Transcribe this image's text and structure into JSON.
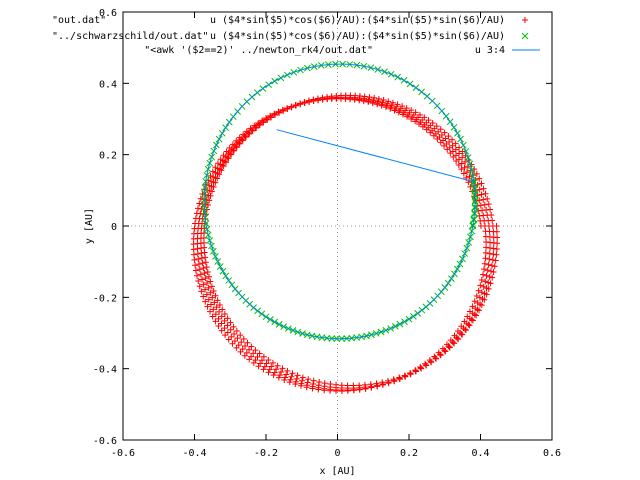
{
  "chart_data": {
    "type": "scatter",
    "xlabel": "x [AU]",
    "ylabel": "y [AU]",
    "xlim": [
      -0.6,
      0.6
    ],
    "ylim": [
      -0.6,
      0.6
    ],
    "xticks": [
      "-0.6",
      "-0.4",
      "-0.2",
      "0",
      "0.2",
      "0.4",
      "0.6"
    ],
    "yticks": [
      "-0.6",
      "-0.4",
      "-0.2",
      "0",
      "0.2",
      "0.4",
      "0.6"
    ],
    "zero_axes": true,
    "legend_position": "top-right",
    "series": [
      {
        "file": "\"out.dat\"",
        "using": "u ($4*sin($5)*cos($6)/AU):($4*sin($5)*sin($6)/AU)",
        "style": "points",
        "marker": "plus",
        "color": "#ff0000",
        "orbit": {
          "a": 0.41,
          "e": 0.13,
          "omega0_deg": 88,
          "precession_per_rev_deg": 12,
          "revolutions": 4,
          "direction": "counterclockwise"
        },
        "x_start": -0.025,
        "y_start": 0.4
      },
      {
        "file": "\"../schwarzschild/out.dat\"",
        "using": "u ($4*sin($5)*cos($6)/AU):($4*sin($5)*sin($6)/AU)",
        "style": "points",
        "marker": "cross",
        "color": "#00c000",
        "orbit": {
          "a": 0.385,
          "e": 0.18,
          "omega0_deg": 265,
          "precession_per_rev_deg": 0,
          "revolutions": 1.05,
          "direction": "counterclockwise"
        }
      },
      {
        "file": "\"<awk '($2==2)' ../newton_rk4/out.dat\"",
        "using": "u 3:4",
        "style": "lines",
        "color": "#0080ff",
        "orbit": {
          "a": 0.385,
          "e": 0.18,
          "omega0_deg": 265,
          "precession_per_rev_deg": 0,
          "revolutions": 1.05,
          "direction": "counterclockwise"
        },
        "x_end": -0.17,
        "y_end": 0.27
      }
    ]
  }
}
